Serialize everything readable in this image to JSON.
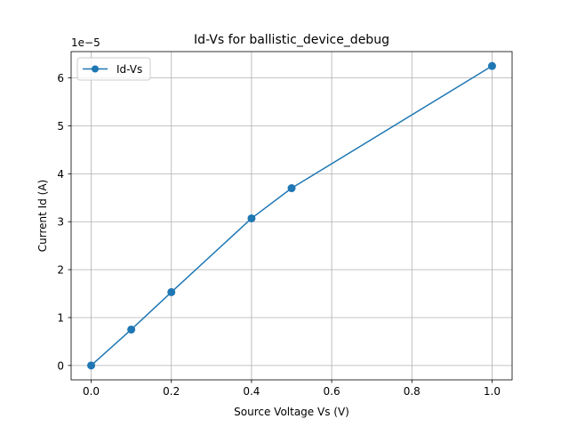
{
  "chart_data": {
    "type": "line",
    "title": "Id-Vs for ballistic_device_debug",
    "xlabel": "Source Voltage Vs (V)",
    "ylabel": "Current Id (A)",
    "y_offset_label": "1e−5",
    "xlim": [
      -0.05,
      1.05
    ],
    "ylim": [
      -0.3,
      6.55
    ],
    "y_scale_factor": 1e-05,
    "grid": true,
    "legend_position": "upper-left",
    "x_ticks": [
      0.0,
      0.2,
      0.4,
      0.6,
      0.8,
      1.0
    ],
    "x_tick_labels": [
      "0.0",
      "0.2",
      "0.4",
      "0.6",
      "0.8",
      "1.0"
    ],
    "y_ticks": [
      0,
      1,
      2,
      3,
      4,
      5,
      6
    ],
    "y_tick_labels": [
      "0",
      "1",
      "2",
      "3",
      "4",
      "5",
      "6"
    ],
    "series": [
      {
        "name": "Id-Vs",
        "color": "#1f77b4",
        "marker": "circle",
        "x": [
          0.0,
          0.1,
          0.2,
          0.4,
          0.5,
          1.0
        ],
        "y": [
          0.0,
          0.75,
          1.53,
          3.07,
          3.7,
          6.25
        ]
      }
    ]
  }
}
